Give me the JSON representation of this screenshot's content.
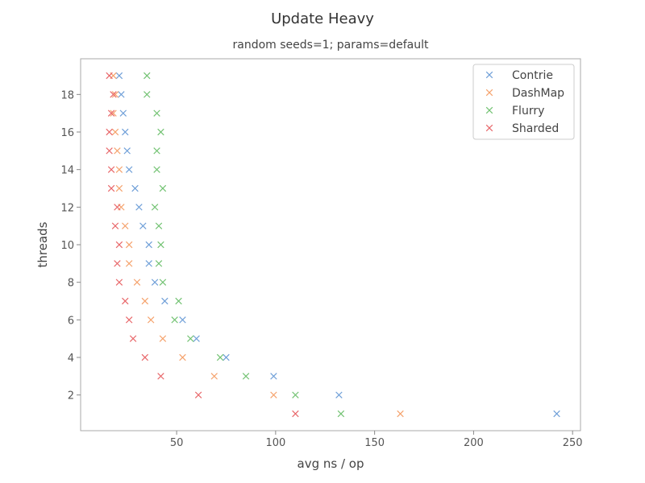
{
  "chart_data": {
    "type": "scatter",
    "title": "Update Heavy",
    "subtitle": "random seeds=1; params=default",
    "xlabel": "avg ns / op",
    "ylabel": "threads",
    "xlim": [
      1.5,
      254
    ],
    "ylim": [
      0.1,
      19.9
    ],
    "xticks": [
      50,
      100,
      150,
      200,
      250
    ],
    "yticks": [
      2,
      4,
      6,
      8,
      10,
      12,
      14,
      16,
      18
    ],
    "grid": false,
    "legend_position": "top-right",
    "marker": "x",
    "series": [
      {
        "name": "Contrie",
        "color": "#6f9fd8",
        "points": [
          [
            242,
            1
          ],
          [
            132,
            2
          ],
          [
            99,
            3
          ],
          [
            75,
            4
          ],
          [
            60,
            5
          ],
          [
            53,
            6
          ],
          [
            44,
            7
          ],
          [
            39,
            8
          ],
          [
            36,
            9
          ],
          [
            36,
            10
          ],
          [
            33,
            11
          ],
          [
            31,
            12
          ],
          [
            29,
            13
          ],
          [
            26,
            14
          ],
          [
            25,
            15
          ],
          [
            24,
            16
          ],
          [
            23,
            17
          ],
          [
            22,
            18
          ],
          [
            21,
            19
          ]
        ]
      },
      {
        "name": "DashMap",
        "color": "#f5a26c",
        "points": [
          [
            163,
            1
          ],
          [
            99,
            2
          ],
          [
            69,
            3
          ],
          [
            53,
            4
          ],
          [
            43,
            5
          ],
          [
            37,
            6
          ],
          [
            34,
            7
          ],
          [
            30,
            8
          ],
          [
            26,
            9
          ],
          [
            26,
            10
          ],
          [
            24,
            11
          ],
          [
            22,
            12
          ],
          [
            21,
            13
          ],
          [
            21,
            14
          ],
          [
            20,
            15
          ],
          [
            19,
            16
          ],
          [
            18,
            17
          ],
          [
            19,
            18
          ],
          [
            18,
            19
          ]
        ]
      },
      {
        "name": "Flurry",
        "color": "#72c272",
        "points": [
          [
            133,
            1
          ],
          [
            110,
            2
          ],
          [
            85,
            3
          ],
          [
            72,
            4
          ],
          [
            57,
            5
          ],
          [
            49,
            6
          ],
          [
            51,
            7
          ],
          [
            43,
            8
          ],
          [
            41,
            9
          ],
          [
            42,
            10
          ],
          [
            41,
            11
          ],
          [
            39,
            12
          ],
          [
            43,
            13
          ],
          [
            40,
            14
          ],
          [
            40,
            15
          ],
          [
            42,
            16
          ],
          [
            40,
            17
          ],
          [
            35,
            18
          ],
          [
            35,
            19
          ]
        ]
      },
      {
        "name": "Sharded",
        "color": "#e8676a",
        "points": [
          [
            110,
            1
          ],
          [
            61,
            2
          ],
          [
            42,
            3
          ],
          [
            34,
            4
          ],
          [
            28,
            5
          ],
          [
            26,
            6
          ],
          [
            24,
            7
          ],
          [
            21,
            8
          ],
          [
            20,
            9
          ],
          [
            21,
            10
          ],
          [
            19,
            11
          ],
          [
            20,
            12
          ],
          [
            17,
            13
          ],
          [
            17,
            14
          ],
          [
            16,
            15
          ],
          [
            16,
            16
          ],
          [
            17,
            17
          ],
          [
            18,
            18
          ],
          [
            16,
            19
          ]
        ]
      }
    ]
  }
}
